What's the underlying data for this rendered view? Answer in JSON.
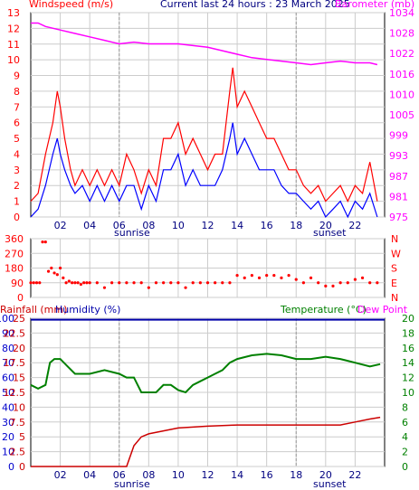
{
  "header": {
    "wind_title": "Windspeed (m/s)",
    "current": "Current last 24 hours : 23 March 2025",
    "baro_title": "Barometer (mb)"
  },
  "labels": {
    "rain_title": "Rainfall (mm)",
    "humidity_title": "Humidity (%)",
    "temp_title": "Temperature (°C)",
    "dew_title": "Dew Point",
    "sunrise": "sunrise",
    "sunset": "sunset"
  },
  "colors": {
    "wind_gust": "#ff0000",
    "wind_avg": "#0000ff",
    "baro": "#ff00ff",
    "wind_dir": "#ff0000",
    "rain": "#cc0000",
    "humidity": "#0000aa",
    "temperature": "#008000",
    "grid": "#cccccc",
    "axis_left": "#0000cc",
    "axis_right": "#008000"
  },
  "chart_data": [
    {
      "type": "line",
      "name": "wind-baro",
      "x_ticks": [
        "02",
        "04",
        "06",
        "08",
        "10",
        "12",
        "14",
        "16",
        "18",
        "20",
        "22"
      ],
      "y_left_ticks": [
        0,
        1,
        2,
        3,
        4,
        5,
        6,
        7,
        8,
        9,
        10,
        11,
        12,
        13
      ],
      "y_right_ticks": [
        975,
        981,
        987,
        993,
        999,
        1005,
        1010,
        1016,
        1022,
        1028,
        1034
      ],
      "ylim_left": [
        0,
        13
      ],
      "ylim_right": [
        975,
        1034
      ],
      "xlim_hours": [
        0,
        24
      ],
      "series": [
        {
          "name": "Windspeed (m/s)",
          "role": "gust",
          "x": [
            0,
            0.5,
            1.0,
            1.5,
            1.8,
            2.0,
            2.3,
            2.7,
            3.0,
            3.5,
            4.0,
            4.5,
            5.0,
            5.5,
            6.0,
            6.5,
            7.0,
            7.5,
            8.0,
            8.5,
            9.0,
            9.5,
            10.0,
            10.5,
            11.0,
            11.5,
            12.0,
            12.5,
            13.0,
            13.5,
            13.7,
            14.0,
            14.5,
            15.0,
            15.5,
            16.0,
            16.5,
            17.0,
            17.5,
            18.0,
            18.5,
            19.0,
            19.5,
            20.0,
            20.5,
            21.0,
            21.5,
            22.0,
            22.5,
            23.0,
            23.5
          ],
          "values": [
            1,
            1.5,
            4,
            6,
            8,
            7,
            5,
            3,
            2,
            3,
            2,
            3,
            2,
            3,
            2,
            4,
            3,
            1.5,
            3,
            2,
            5,
            5,
            6,
            4,
            5,
            4,
            3,
            4,
            4,
            8,
            9.5,
            7,
            8,
            7,
            6,
            5,
            5,
            4,
            3,
            3,
            2,
            1.5,
            2,
            1,
            1.5,
            2,
            1,
            2,
            1.5,
            3.5,
            1
          ]
        },
        {
          "name": "Windspeed avg",
          "role": "average",
          "x": [
            0,
            0.5,
            1.0,
            1.5,
            1.8,
            2.0,
            2.3,
            2.7,
            3.0,
            3.5,
            4.0,
            4.5,
            5.0,
            5.5,
            6.0,
            6.5,
            7.0,
            7.5,
            8.0,
            8.5,
            9.0,
            9.5,
            10.0,
            10.5,
            11.0,
            11.5,
            12.0,
            12.5,
            13.0,
            13.5,
            13.7,
            14.0,
            14.5,
            15.0,
            15.5,
            16.0,
            16.5,
            17.0,
            17.5,
            18.0,
            18.5,
            19.0,
            19.5,
            20.0,
            20.5,
            21.0,
            21.5,
            22.0,
            22.5,
            23.0,
            23.5
          ],
          "values": [
            0,
            0.5,
            2,
            4,
            5,
            4,
            3,
            2,
            1.5,
            2,
            1,
            2,
            1,
            2,
            1,
            2,
            2,
            0.5,
            2,
            1,
            3,
            3,
            4,
            2,
            3,
            2,
            2,
            2,
            3,
            5,
            6,
            4,
            5,
            4,
            3,
            3,
            3,
            2,
            1.5,
            1.5,
            1,
            0.5,
            1,
            0,
            0.5,
            1,
            0,
            1,
            0.5,
            1.5,
            0
          ]
        },
        {
          "name": "Barometer (mb)",
          "role": "pressure",
          "axis": "right",
          "x": [
            0,
            0.5,
            1,
            2,
            3,
            4,
            5,
            6,
            7,
            8,
            9,
            10,
            11,
            12,
            13,
            14,
            15,
            16,
            17,
            18,
            19,
            20,
            21,
            22,
            23,
            23.5
          ],
          "values": [
            1031,
            1031,
            1030,
            1029,
            1028,
            1027,
            1026,
            1025,
            1025.5,
            1025,
            1025,
            1025,
            1024.5,
            1024,
            1023,
            1022,
            1021,
            1020.5,
            1020,
            1019.5,
            1019,
            1019.5,
            1020,
            1019.5,
            1019.5,
            1019
          ]
        }
      ]
    },
    {
      "type": "scatter",
      "name": "wind-direction",
      "y_left_ticks": [
        0,
        90,
        180,
        270,
        360
      ],
      "y_right_ticks": [
        "N",
        "E",
        "S",
        "W",
        "N"
      ],
      "ylim": [
        0,
        360
      ],
      "xlim_hours": [
        0,
        24
      ],
      "series": [
        {
          "name": "Wind direction",
          "x": [
            0,
            0.2,
            0.4,
            0.6,
            0.8,
            1.0,
            1.2,
            1.4,
            1.6,
            1.8,
            2.0,
            2.2,
            2.4,
            2.6,
            2.8,
            3.0,
            3.2,
            3.4,
            3.6,
            3.8,
            4.0,
            4.5,
            5.0,
            5.5,
            6.0,
            6.5,
            7.0,
            7.5,
            8.0,
            8.5,
            9.0,
            9.5,
            10.0,
            10.5,
            11.0,
            11.5,
            12.0,
            12.5,
            13.0,
            13.5,
            14.0,
            14.5,
            15.0,
            15.5,
            16.0,
            16.5,
            17.0,
            17.5,
            18.0,
            18.5,
            19.0,
            19.5,
            20.0,
            20.5,
            21.0,
            21.5,
            22.0,
            22.5,
            23.0,
            23.5
          ],
          "values": [
            90,
            90,
            90,
            90,
            340,
            340,
            160,
            180,
            150,
            140,
            180,
            120,
            90,
            100,
            90,
            90,
            90,
            80,
            90,
            90,
            90,
            90,
            60,
            90,
            90,
            90,
            90,
            90,
            60,
            90,
            90,
            90,
            90,
            60,
            90,
            90,
            90,
            90,
            90,
            90,
            135,
            120,
            135,
            120,
            135,
            135,
            120,
            135,
            110,
            90,
            120,
            90,
            70,
            70,
            90,
            90,
            110,
            120,
            90,
            90
          ]
        }
      ]
    },
    {
      "type": "line",
      "name": "rain-humidity-temperature",
      "y_left_ticks": [
        0,
        10,
        20,
        30,
        40,
        50,
        60,
        70,
        80,
        90,
        100
      ],
      "y_rain_ticks": [
        0,
        2.5,
        5,
        7.5,
        10,
        12.5,
        15,
        17.5,
        20,
        22.5,
        25
      ],
      "y_right_ticks": [
        0,
        2,
        4,
        6,
        8,
        10,
        12,
        14,
        16,
        18,
        20
      ],
      "ylim_left": [
        0,
        100
      ],
      "ylim_right": [
        0,
        20
      ],
      "xlim_hours": [
        0,
        24
      ],
      "series": [
        {
          "name": "Humidity (%)",
          "axis": "left",
          "x": [
            0,
            24
          ],
          "values": [
            100,
            100
          ]
        },
        {
          "name": "Temperature (°C)",
          "axis": "right",
          "x": [
            0,
            0.5,
            1.0,
            1.3,
            1.6,
            2.0,
            2.5,
            3.0,
            3.5,
            4.0,
            5.0,
            6.0,
            6.5,
            7.0,
            7.5,
            8.0,
            8.5,
            9.0,
            9.5,
            10.0,
            10.5,
            11.0,
            11.5,
            12.0,
            12.5,
            13.0,
            13.5,
            14.0,
            15.0,
            16.0,
            17.0,
            18.0,
            19.0,
            20.0,
            21.0,
            22.0,
            23.0,
            23.7
          ],
          "values": [
            11,
            10.5,
            11,
            14,
            14.5,
            14.5,
            13.5,
            12.5,
            12.5,
            12.5,
            13,
            12.5,
            12,
            12,
            10,
            10,
            10,
            11,
            11,
            10.3,
            10,
            11,
            11.5,
            12,
            12.5,
            13,
            14,
            14.5,
            15,
            15.2,
            15,
            14.5,
            14.5,
            14.8,
            14.5,
            14,
            13.5,
            13.8
          ]
        },
        {
          "name": "Rainfall (mm)",
          "axis": "rain",
          "x": [
            0,
            5.5,
            6.0,
            6.5,
            7.0,
            7.5,
            8.0,
            9.0,
            10.0,
            12.0,
            14.0,
            16.0,
            18.0,
            20.0,
            21.0,
            22.0,
            23.0,
            23.7
          ],
          "values": [
            0,
            0,
            0,
            0,
            3.5,
            5,
            5.5,
            6,
            6.5,
            6.8,
            7,
            7,
            7,
            7,
            7,
            7.5,
            8,
            8.3
          ]
        }
      ]
    }
  ]
}
